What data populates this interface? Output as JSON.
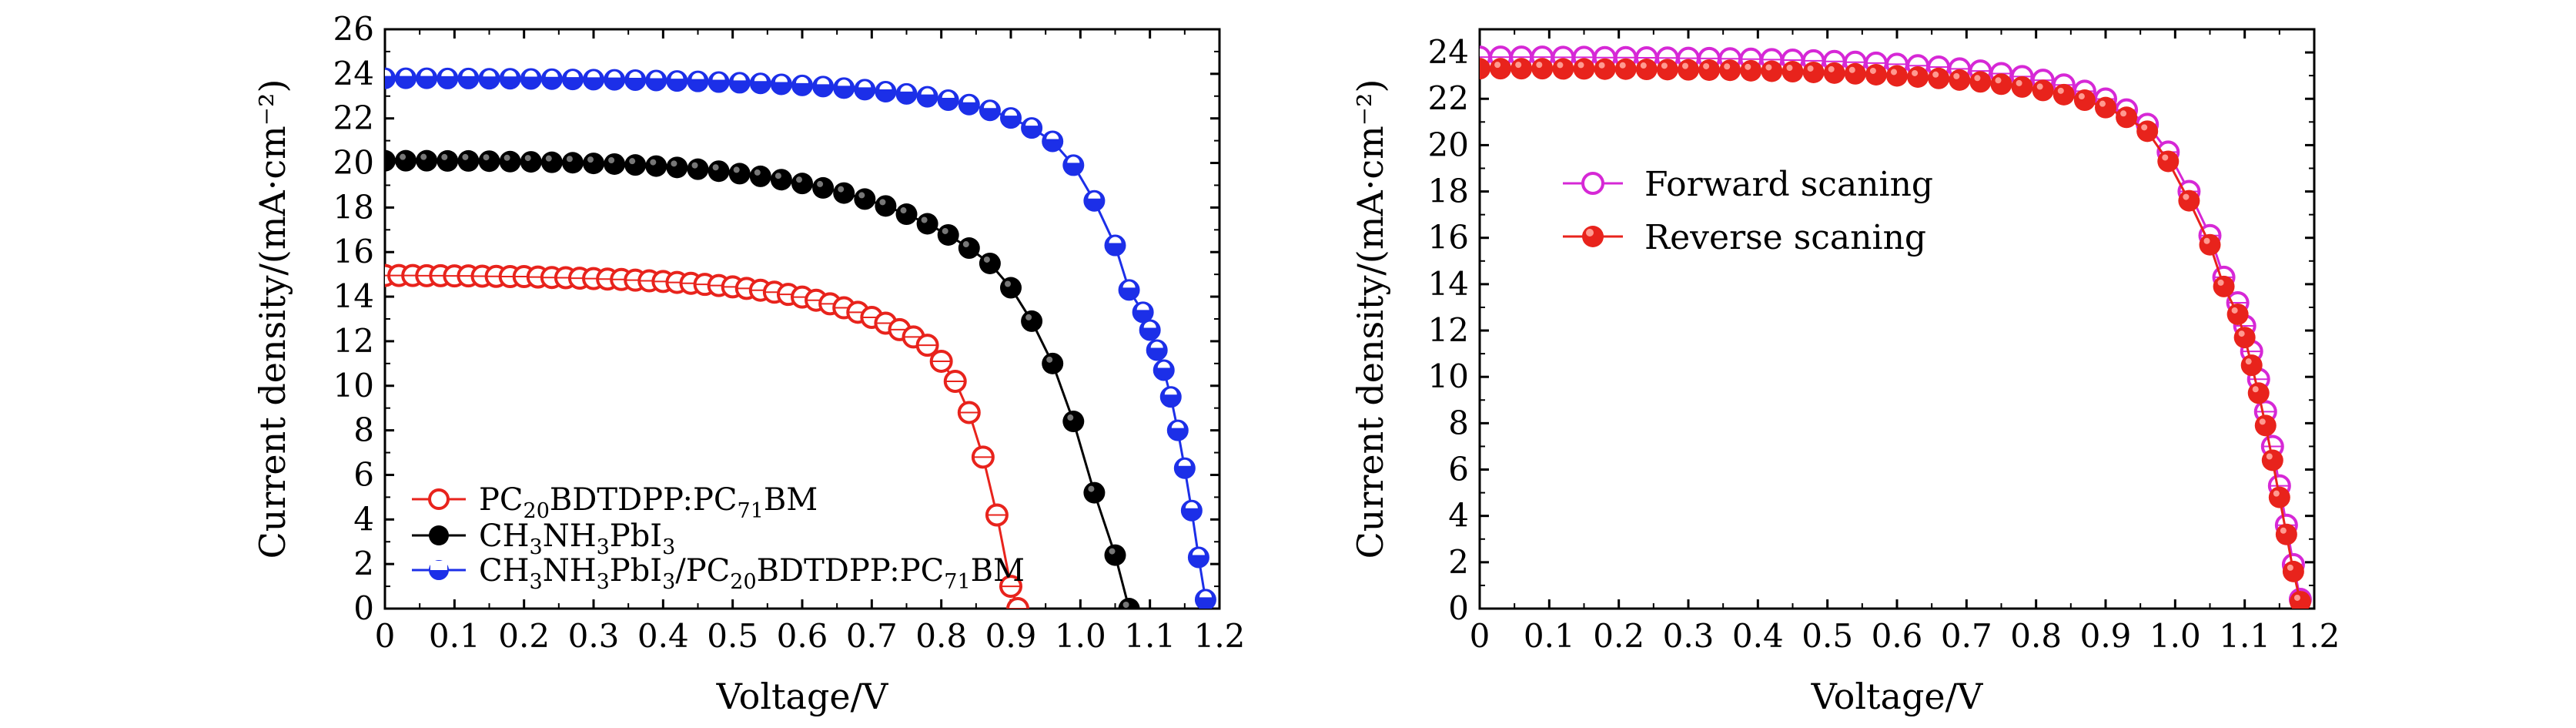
{
  "chart_data": [
    {
      "type": "line",
      "title": "",
      "xlabel": "Voltage/V",
      "ylabel": "Current density/(mA·cm⁻²)",
      "xlim": [
        0,
        1.2
      ],
      "ylim": [
        0,
        26
      ],
      "xticks": [
        "0",
        "0.1",
        "0.2",
        "0.3",
        "0.4",
        "0.5",
        "0.6",
        "0.7",
        "0.8",
        "0.9",
        "1.0",
        "1.1",
        "1.2"
      ],
      "yticks": [
        "0",
        "2",
        "4",
        "6",
        "8",
        "10",
        "12",
        "14",
        "16",
        "18",
        "20",
        "22",
        "24",
        "26"
      ],
      "legend_position": "bottom-left",
      "series": [
        {
          "name": "PC20BDTDPP:PC71BM",
          "legend_label": {
            "a": "PC",
            "b": "20",
            "c": "BDTDPP:PC",
            "d": "71",
            "e": "BM"
          },
          "color": "#e8231c",
          "marker": "open-circle",
          "x": [
            0,
            0.02,
            0.04,
            0.06,
            0.08,
            0.1,
            0.12,
            0.14,
            0.16,
            0.18,
            0.2,
            0.22,
            0.24,
            0.26,
            0.28,
            0.3,
            0.32,
            0.34,
            0.36,
            0.38,
            0.4,
            0.42,
            0.44,
            0.46,
            0.48,
            0.5,
            0.52,
            0.54,
            0.56,
            0.58,
            0.6,
            0.62,
            0.64,
            0.66,
            0.68,
            0.7,
            0.72,
            0.74,
            0.76,
            0.78,
            0.8,
            0.82,
            0.84,
            0.86,
            0.88,
            0.9,
            0.91
          ],
          "y": [
            14.95,
            14.95,
            14.95,
            14.94,
            14.94,
            14.93,
            14.93,
            14.92,
            14.91,
            14.9,
            14.9,
            14.88,
            14.86,
            14.85,
            14.83,
            14.81,
            14.79,
            14.77,
            14.74,
            14.71,
            14.68,
            14.64,
            14.6,
            14.55,
            14.5,
            14.44,
            14.37,
            14.29,
            14.2,
            14.1,
            13.98,
            13.84,
            13.68,
            13.5,
            13.3,
            13.07,
            12.81,
            12.52,
            12.19,
            11.82,
            11.1,
            10.2,
            8.8,
            6.8,
            4.2,
            1.0,
            0.0
          ]
        },
        {
          "name": "CH3NH3PbI3",
          "legend_label": {
            "a": "CH",
            "b": "3",
            "c": "NH",
            "d": "3",
            "e": "PbI",
            "f": "3"
          },
          "color": "#000000",
          "marker": "filled-circle",
          "x": [
            0,
            0.03,
            0.06,
            0.09,
            0.12,
            0.15,
            0.18,
            0.21,
            0.24,
            0.27,
            0.3,
            0.33,
            0.36,
            0.39,
            0.42,
            0.45,
            0.48,
            0.51,
            0.54,
            0.57,
            0.6,
            0.63,
            0.66,
            0.69,
            0.72,
            0.75,
            0.78,
            0.81,
            0.84,
            0.87,
            0.9,
            0.93,
            0.96,
            0.99,
            1.02,
            1.05,
            1.07
          ],
          "y": [
            20.1,
            20.1,
            20.1,
            20.09,
            20.09,
            20.08,
            20.06,
            20.05,
            20.03,
            20.01,
            19.98,
            19.95,
            19.91,
            19.86,
            19.8,
            19.72,
            19.63,
            19.52,
            19.4,
            19.25,
            19.08,
            18.88,
            18.65,
            18.38,
            18.07,
            17.7,
            17.27,
            16.77,
            16.18,
            15.49,
            14.4,
            12.9,
            11.0,
            8.4,
            5.2,
            2.4,
            0.0
          ]
        },
        {
          "name": "CH3NH3PbI3/PC20BDTDPP:PC71BM",
          "legend_label": {
            "a": "CH",
            "b": "3",
            "c": "NH",
            "d": "3",
            "e": "PbI",
            "f": "3",
            "g": "/PC",
            "h": "20",
            "i": "BDTDPP:PC",
            "j": "71",
            "k": "BM"
          },
          "color": "#1c2fe8",
          "marker": "half-filled-circle",
          "x": [
            0,
            0.03,
            0.06,
            0.09,
            0.12,
            0.15,
            0.18,
            0.21,
            0.24,
            0.27,
            0.3,
            0.33,
            0.36,
            0.39,
            0.42,
            0.45,
            0.48,
            0.51,
            0.54,
            0.57,
            0.6,
            0.63,
            0.66,
            0.69,
            0.72,
            0.75,
            0.78,
            0.81,
            0.84,
            0.87,
            0.9,
            0.93,
            0.96,
            0.99,
            1.02,
            1.05,
            1.07,
            1.09,
            1.1,
            1.11,
            1.12,
            1.13,
            1.14,
            1.15,
            1.16,
            1.17,
            1.18
          ],
          "y": [
            23.8,
            23.8,
            23.8,
            23.79,
            23.79,
            23.78,
            23.78,
            23.77,
            23.76,
            23.75,
            23.74,
            23.73,
            23.72,
            23.7,
            23.68,
            23.66,
            23.63,
            23.6,
            23.57,
            23.53,
            23.48,
            23.43,
            23.36,
            23.29,
            23.2,
            23.1,
            22.97,
            22.82,
            22.62,
            22.36,
            22.02,
            21.57,
            20.97,
            19.9,
            18.3,
            16.3,
            14.3,
            13.3,
            12.5,
            11.6,
            10.7,
            9.5,
            8.0,
            6.3,
            4.4,
            2.3,
            0.4
          ]
        }
      ]
    },
    {
      "type": "line",
      "title": "",
      "xlabel": "Voltage/V",
      "ylabel": "Current density/(mA·cm⁻²)",
      "xlim": [
        0,
        1.2
      ],
      "ylim": [
        0,
        25
      ],
      "xticks": [
        "0",
        "0.1",
        "0.2",
        "0.3",
        "0.4",
        "0.5",
        "0.6",
        "0.7",
        "0.8",
        "0.9",
        "1.0",
        "1.1",
        "1.2"
      ],
      "yticks": [
        "0",
        "2",
        "4",
        "6",
        "8",
        "10",
        "12",
        "14",
        "16",
        "18",
        "20",
        "22",
        "24"
      ],
      "legend_position": "top-left",
      "series": [
        {
          "name": "Forward scaning",
          "color": "#d628d6",
          "marker": "open-circle",
          "x": [
            0,
            0.03,
            0.06,
            0.09,
            0.12,
            0.15,
            0.18,
            0.21,
            0.24,
            0.27,
            0.3,
            0.33,
            0.36,
            0.39,
            0.42,
            0.45,
            0.48,
            0.51,
            0.54,
            0.57,
            0.6,
            0.63,
            0.66,
            0.69,
            0.72,
            0.75,
            0.78,
            0.81,
            0.84,
            0.87,
            0.9,
            0.93,
            0.96,
            0.99,
            1.02,
            1.05,
            1.07,
            1.09,
            1.1,
            1.11,
            1.12,
            1.13,
            1.14,
            1.15,
            1.16,
            1.17,
            1.18
          ],
          "y": [
            23.8,
            23.8,
            23.8,
            23.8,
            23.79,
            23.79,
            23.78,
            23.78,
            23.77,
            23.76,
            23.75,
            23.74,
            23.73,
            23.71,
            23.69,
            23.67,
            23.64,
            23.61,
            23.58,
            23.54,
            23.49,
            23.43,
            23.37,
            23.29,
            23.2,
            23.09,
            22.96,
            22.8,
            22.6,
            22.33,
            21.99,
            21.52,
            20.9,
            19.7,
            18.0,
            16.1,
            14.3,
            13.2,
            12.2,
            11.1,
            9.9,
            8.5,
            7.0,
            5.3,
            3.6,
            1.9,
            0.4
          ]
        },
        {
          "name": "Reverse scaning",
          "color": "#e8231c",
          "marker": "filled-circle",
          "x": [
            0,
            0.03,
            0.06,
            0.09,
            0.12,
            0.15,
            0.18,
            0.21,
            0.24,
            0.27,
            0.3,
            0.33,
            0.36,
            0.39,
            0.42,
            0.45,
            0.48,
            0.51,
            0.54,
            0.57,
            0.6,
            0.63,
            0.66,
            0.69,
            0.72,
            0.75,
            0.78,
            0.81,
            0.84,
            0.87,
            0.9,
            0.93,
            0.96,
            0.99,
            1.02,
            1.05,
            1.07,
            1.09,
            1.1,
            1.11,
            1.12,
            1.13,
            1.14,
            1.15,
            1.16,
            1.17,
            1.18
          ],
          "y": [
            23.3,
            23.3,
            23.3,
            23.3,
            23.29,
            23.29,
            23.28,
            23.28,
            23.27,
            23.26,
            23.25,
            23.24,
            23.23,
            23.21,
            23.19,
            23.17,
            23.14,
            23.11,
            23.08,
            23.04,
            22.99,
            22.94,
            22.88,
            22.81,
            22.73,
            22.63,
            22.51,
            22.36,
            22.18,
            21.94,
            21.62,
            21.2,
            20.6,
            19.3,
            17.6,
            15.7,
            13.9,
            12.7,
            11.7,
            10.5,
            9.3,
            7.9,
            6.4,
            4.8,
            3.2,
            1.6,
            0.3
          ]
        }
      ]
    }
  ]
}
